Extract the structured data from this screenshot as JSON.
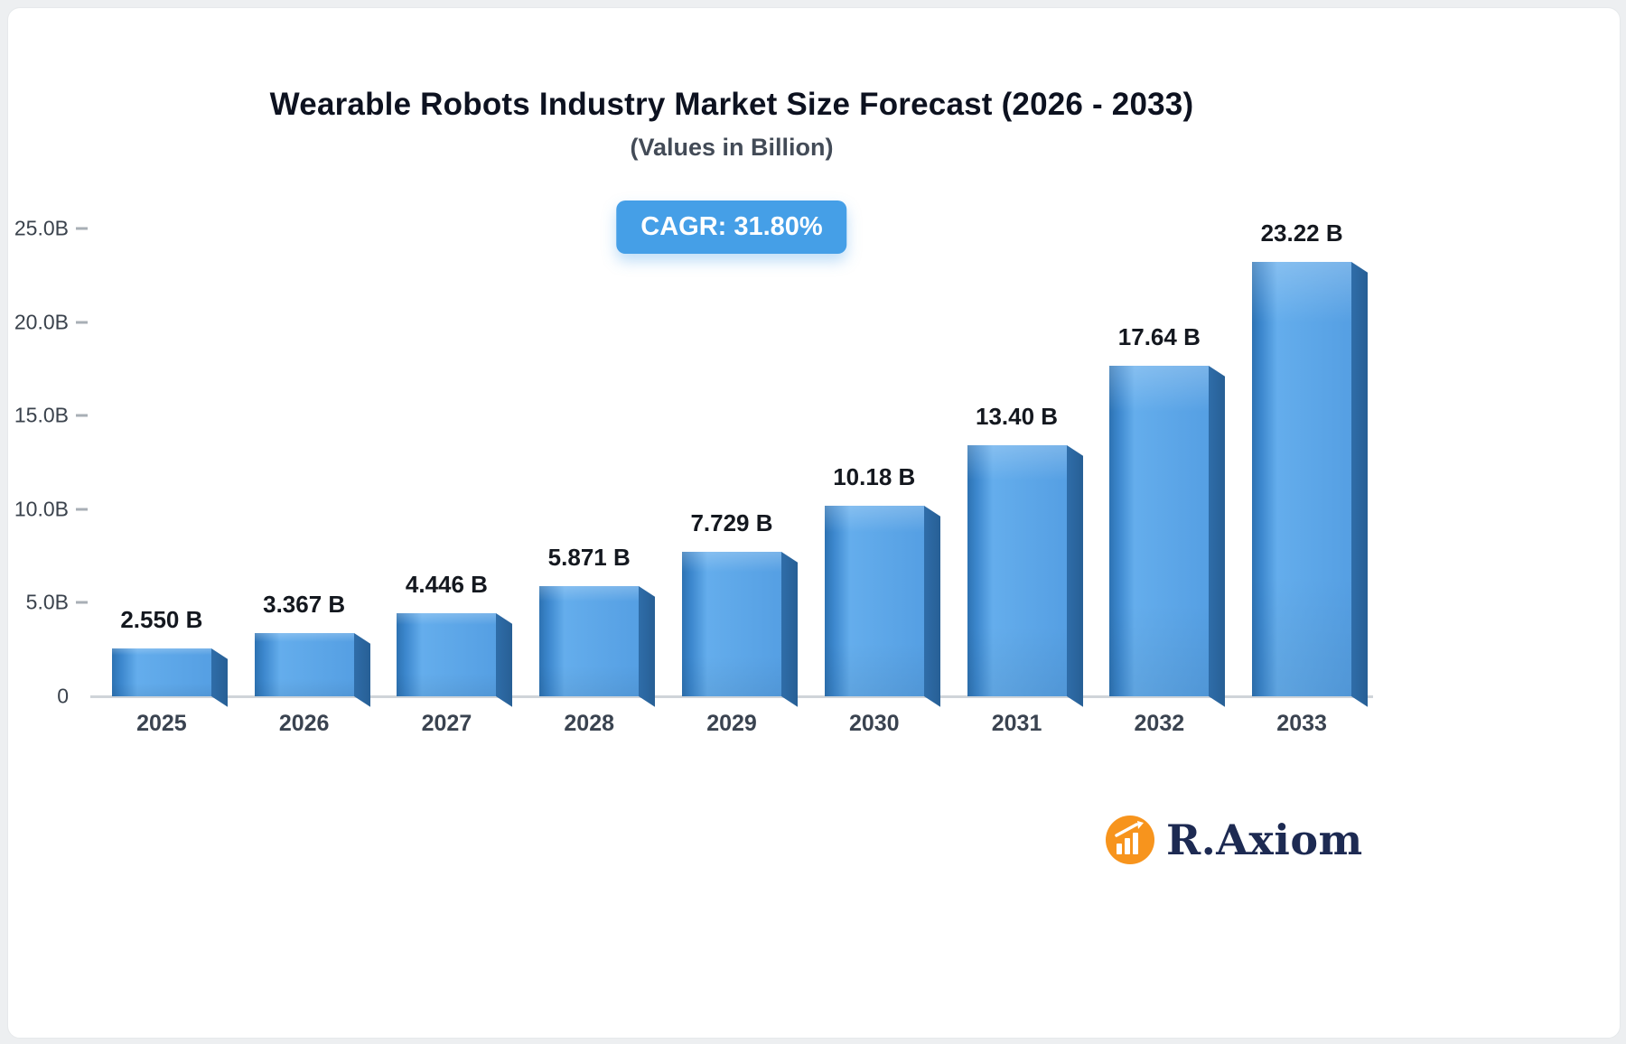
{
  "header": {
    "title": "Wearable Robots Industry Market Size Forecast (2026 - 2033)",
    "subtitle": "(Values in Billion)"
  },
  "cagr_badge": {
    "label": "CAGR: 31.80%",
    "background": "#459fe7",
    "text_color": "#ffffff"
  },
  "chart_data": {
    "type": "bar",
    "title": "Wearable Robots Industry Market Size Forecast (2026 - 2033)",
    "subtitle": "(Values in Billion)",
    "categories": [
      "2025",
      "2026",
      "2027",
      "2028",
      "2029",
      "2030",
      "2031",
      "2032",
      "2033"
    ],
    "values": [
      2.55,
      3.367,
      4.446,
      5.871,
      7.729,
      10.18,
      13.4,
      17.64,
      23.22
    ],
    "value_labels": [
      "2.550 B",
      "3.367 B",
      "4.446 B",
      "5.871 B",
      "7.729 B",
      "10.18 B",
      "13.40 B",
      "17.64 B",
      "23.22 B"
    ],
    "xlabel": "",
    "ylabel": "",
    "ylim": [
      0,
      25
    ],
    "y_ticks": [
      {
        "value": 25,
        "label": "25.0B"
      },
      {
        "value": 20,
        "label": "20.0B"
      },
      {
        "value": 15,
        "label": "15.0B"
      },
      {
        "value": 10,
        "label": "10.0B"
      },
      {
        "value": 5,
        "label": "5.0B"
      },
      {
        "value": 0,
        "label": "0"
      }
    ],
    "grid": false,
    "legend": "none",
    "cagr": "31.80%",
    "bar_color_face": "#57a4e7",
    "bar_color_edge": "#2d72b2",
    "bar_color_side": "#2b679f"
  },
  "logo": {
    "text": "R.Axiom",
    "icon": "growth-chart-icon",
    "icon_color": "#f7941d",
    "text_color": "#1d2a52"
  }
}
